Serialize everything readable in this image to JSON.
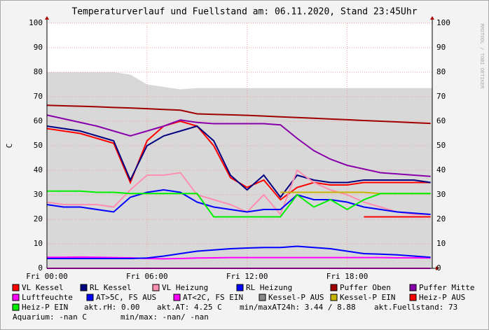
{
  "chart_data": {
    "type": "line",
    "title": "Temperaturverlauf und Fuellstand am: 06.11.2020, Stand 23:45Uhr",
    "y_label": "C",
    "side_text": "RRDTOOL / TOBI OETIKER",
    "x": [
      0,
      1,
      2,
      3,
      4,
      5,
      6,
      7,
      8,
      9,
      10,
      11,
      12,
      13,
      14,
      15,
      16,
      17,
      18,
      19,
      20,
      21,
      22,
      23
    ],
    "xlim": [
      0,
      23.1
    ],
    "xticks": [
      {
        "value": 0,
        "label": "Fri 00:00"
      },
      {
        "value": 6,
        "label": "Fri 06:00"
      },
      {
        "value": 12,
        "label": "Fri 12:00"
      },
      {
        "value": 18,
        "label": "Fri 18:00"
      }
    ],
    "ylim": [
      0,
      100
    ],
    "yticks": [
      0,
      10,
      20,
      30,
      40,
      50,
      60,
      70,
      80,
      90,
      100
    ],
    "grid": true,
    "area": {
      "color": "#d8d8d8",
      "values": [
        80,
        80,
        80,
        80,
        80,
        79,
        75,
        74,
        73,
        73.5,
        73.5,
        73.5,
        73.5,
        73.5,
        73.5,
        73.5,
        73.5,
        73.5,
        73.5,
        73.5,
        73.5,
        73.5,
        73.5,
        73.5
      ]
    },
    "series": [
      {
        "name": "VL Kessel",
        "color": "#ff0000",
        "values": [
          57,
          56,
          55,
          53,
          51,
          35,
          52,
          58,
          60,
          58,
          50,
          37,
          33,
          36,
          28,
          33,
          35,
          34,
          34,
          35,
          35,
          35,
          35,
          35
        ]
      },
      {
        "name": "RL Kessel",
        "color": "#000080",
        "values": [
          58,
          57,
          56,
          54,
          52,
          36,
          50,
          54,
          56,
          58,
          52,
          38,
          32,
          38,
          29,
          38,
          36,
          35,
          35,
          36,
          36,
          36,
          36,
          35
        ]
      },
      {
        "name": "VL Heizung",
        "color": "#ff8fb0",
        "values": [
          27,
          26,
          26,
          26,
          25,
          32,
          38,
          38,
          39,
          30,
          28,
          26,
          23,
          30,
          22,
          40,
          35,
          32,
          30,
          27,
          25,
          23,
          22,
          22
        ]
      },
      {
        "name": "RL Heizung",
        "color": "#0000ff",
        "values": [
          26,
          25,
          25,
          24,
          23,
          29,
          31,
          32,
          31,
          27,
          25,
          24,
          23,
          24,
          24,
          30,
          28,
          28,
          27,
          25,
          24,
          23,
          22.5,
          22
        ]
      },
      {
        "name": "Puffer Oben",
        "color": "#a00000",
        "values": [
          66.5,
          66.3,
          66.1,
          65.9,
          65.6,
          65.4,
          65.1,
          64.8,
          64.5,
          63,
          62.8,
          62.6,
          62.4,
          62.1,
          61.8,
          61.5,
          61.2,
          60.9,
          60.6,
          60.3,
          60,
          59.7,
          59.4,
          59.1
        ]
      },
      {
        "name": "Puffer Mitte",
        "color": "#8800aa",
        "values": [
          62.5,
          61,
          59.5,
          58,
          56,
          54,
          56,
          58,
          60.5,
          59.5,
          59,
          59,
          59,
          59,
          58.5,
          53,
          48,
          44.5,
          42,
          40.5,
          39,
          38.5,
          38,
          37.5
        ]
      },
      {
        "name": "Luftfeuchte",
        "color": "#ff00ff",
        "values": [
          4.5,
          4.5,
          4.6,
          4.5,
          4.4,
          4.3,
          4,
          3.9,
          4,
          4.2,
          4.3,
          4.4,
          4.4,
          4.4,
          4.4,
          4.4,
          4.4,
          4.4,
          4.4,
          4.4,
          4.4,
          4.3,
          4.3,
          4.2
        ]
      },
      {
        "name": "AT>5C, FS AUS",
        "color": "#0000ff",
        "values": [
          4,
          4,
          4,
          4,
          4,
          4,
          4.2,
          5,
          6,
          7,
          7.5,
          8,
          8.3,
          8.5,
          8.5,
          9,
          8.5,
          8,
          7,
          6,
          5.8,
          5.5,
          5,
          4.5
        ]
      },
      {
        "name": "AT<2C, FS EIN",
        "color": "#ff00ff",
        "values": [
          0,
          0,
          0,
          0,
          0,
          0,
          0,
          0,
          0,
          0,
          0,
          0,
          0,
          0,
          0,
          0,
          0,
          0,
          0,
          0,
          0,
          0,
          0,
          0
        ]
      },
      {
        "name": "Kessel-P AUS",
        "color": "#888888",
        "values": [
          null,
          null,
          null,
          null,
          null,
          null,
          null,
          null,
          null,
          null,
          null,
          null,
          null,
          null,
          null,
          null,
          null,
          null,
          null,
          null,
          null,
          null,
          null,
          null
        ]
      },
      {
        "name": "Kessel-P EIN",
        "color": "#c8b400",
        "values": [
          null,
          null,
          null,
          null,
          null,
          null,
          null,
          null,
          null,
          null,
          null,
          null,
          null,
          null,
          31,
          31,
          31,
          31,
          31,
          31,
          30.5,
          30.5,
          30.5,
          30.5
        ]
      },
      {
        "name": "Heiz-P AUS",
        "color": "#ff0000",
        "values": [
          null,
          null,
          null,
          null,
          null,
          null,
          null,
          null,
          null,
          null,
          21,
          21,
          21,
          21,
          null,
          null,
          null,
          null,
          null,
          21,
          21,
          21,
          21,
          21
        ]
      },
      {
        "name": "Heiz-P EIN",
        "color": "#00ee00",
        "values": [
          31.5,
          31.5,
          31.5,
          31,
          31,
          30.5,
          30.5,
          30.5,
          30.5,
          30.5,
          21,
          21,
          21,
          21,
          21,
          30,
          25,
          28,
          24,
          28,
          30.5,
          30.5,
          30.5,
          30.5
        ]
      }
    ],
    "info": [
      "akt.rH: 0.00",
      "akt.AT: 4.25 C",
      "min/maxAT24h: 3.44 / 8.88",
      "akt.Fuellstand:   73"
    ],
    "aquarium": [
      "Aquarium: -nan C",
      "min/max: -nan/ -nan"
    ]
  }
}
